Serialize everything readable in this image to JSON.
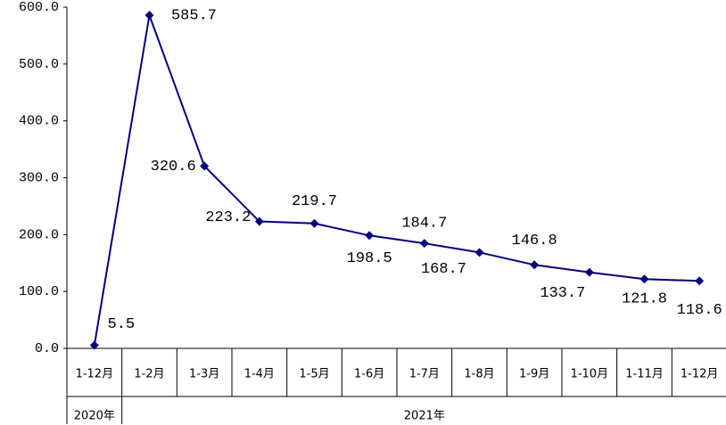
{
  "chart_data": {
    "type": "line",
    "categories": [
      "1-12月",
      "1-2月",
      "1-3月",
      "1-4月",
      "1-5月",
      "1-6月",
      "1-7月",
      "1-8月",
      "1-9月",
      "1-10月",
      "1-11月",
      "1-12月"
    ],
    "groups": [
      {
        "label": "2020年",
        "span": 1
      },
      {
        "label": "2021年",
        "span": 11
      }
    ],
    "series": [
      {
        "color": "#00007f",
        "values": [
          5.5,
          585.7,
          320.6,
          223.2,
          219.7,
          198.5,
          184.7,
          168.7,
          146.8,
          133.7,
          121.8,
          118.6
        ]
      }
    ],
    "ylim": [
      0,
      600
    ],
    "yticks": [
      {
        "value": 0,
        "label": "0.0"
      },
      {
        "value": 100,
        "label": "100.0"
      },
      {
        "value": 200,
        "label": "200.0"
      },
      {
        "value": 300,
        "label": "300.0"
      },
      {
        "value": 400,
        "label": "400.0"
      },
      {
        "value": 500,
        "label": "500.0"
      },
      {
        "value": 600,
        "label": "600.0"
      }
    ],
    "grid": false
  }
}
